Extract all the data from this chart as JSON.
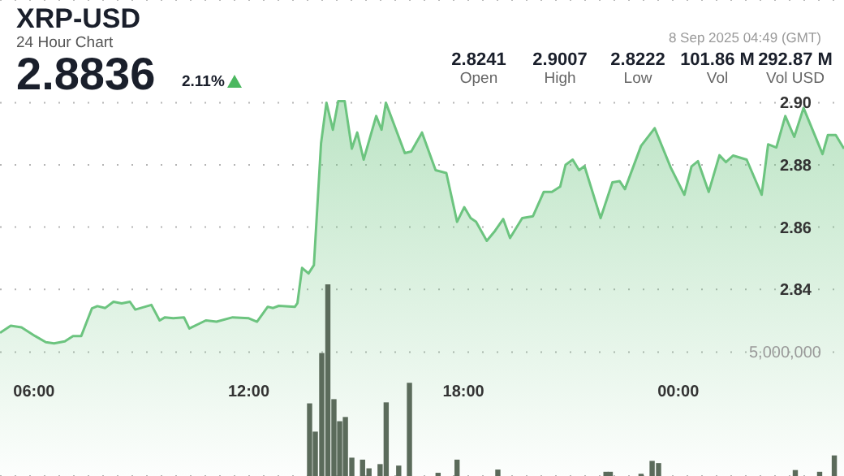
{
  "chart_data": {
    "type": "area",
    "title": "XRP-USD",
    "subtitle": "24 Hour Chart",
    "annotations": [
      "2.8836",
      "2.11%",
      "2.8241",
      "Open",
      "2.9007",
      "High",
      "2.8222",
      "Low",
      "101.86 M",
      "Vol",
      "292.87 M",
      "Vol USD",
      "8 Sep 2025 04:49 (GMT)"
    ],
    "series": [
      {
        "color": "#6cc47f",
        "x": [
          5.05,
          5.35,
          5.65,
          6.03,
          6.33,
          6.56,
          6.86,
          7.09,
          7.32,
          7.62,
          7.77,
          7.99,
          8.22,
          8.45,
          8.68,
          8.83,
          9.28,
          9.51,
          9.66,
          9.89,
          10.19,
          10.34,
          10.8,
          11.1,
          11.55,
          12.0,
          12.23,
          12.53,
          12.68,
          12.84,
          13.29,
          13.36,
          13.49,
          13.67,
          13.82,
          14.02,
          14.17,
          14.35,
          14.5,
          14.68,
          14.88,
          15.03,
          15.21,
          15.56,
          15.71,
          15.83,
          16.36,
          16.54,
          16.84,
          17.22,
          17.52,
          17.82,
          18.02,
          18.2,
          18.35,
          18.65,
          18.88,
          19.11,
          19.3,
          19.64,
          19.94,
          20.24,
          20.47,
          20.7,
          20.85,
          21.05,
          21.23,
          21.38,
          21.83,
          22.16,
          22.36,
          22.51,
          22.96,
          23.34,
          23.79,
          24.17,
          24.37,
          24.55,
          24.85,
          25.15,
          25.33,
          25.53,
          25.91,
          26.33,
          26.51,
          26.74,
          26.99,
          27.24,
          27.5,
          28.03,
          28.18,
          28.4,
          28.63
        ],
        "values": [
          2.826,
          2.8283,
          2.8278,
          2.825,
          2.823,
          2.8226,
          2.8233,
          2.825,
          2.825,
          2.8339,
          2.8346,
          2.834,
          2.836,
          2.8355,
          2.836,
          2.8335,
          2.835,
          2.83,
          2.831,
          2.8307,
          2.831,
          2.8274,
          2.83,
          2.8296,
          2.831,
          2.8307,
          2.8296,
          2.8344,
          2.834,
          2.8347,
          2.8344,
          2.8356,
          2.8469,
          2.8451,
          2.8478,
          2.887,
          2.9,
          2.8913,
          2.9005,
          2.9005,
          2.8852,
          2.8904,
          2.8817,
          2.8957,
          2.8913,
          2.9,
          2.8838,
          2.8843,
          2.8904,
          2.8783,
          2.8774,
          2.8617,
          2.8664,
          2.8629,
          2.8617,
          2.8556,
          2.8588,
          2.8626,
          2.8565,
          2.8629,
          2.8635,
          2.8713,
          2.8713,
          2.873,
          2.88,
          2.8817,
          2.8783,
          2.8796,
          2.8629,
          2.8744,
          2.8748,
          2.8722,
          2.8861,
          2.8918,
          2.8791,
          2.8704,
          2.8795,
          2.8812,
          2.8713,
          2.8831,
          2.8809,
          2.883,
          2.8817,
          2.8704,
          2.8866,
          2.8856,
          2.8957,
          2.889,
          2.8983,
          2.8835,
          2.8896,
          2.8896,
          2.8852
        ]
      },
      {
        "type": "bar",
        "axis": "y2",
        "color": "#5b6b5b",
        "x": [
          13.7,
          13.86,
          14.04,
          14.21,
          14.38,
          14.54,
          14.7,
          14.88,
          15.18,
          15.36,
          15.67,
          15.84,
          16.19,
          16.49,
          17.29,
          17.82,
          18.96,
          21.98,
          22.1,
          22.96,
          23.27,
          23.45,
          27.27,
          27.95,
          28.36
        ],
        "values": [
          2930000,
          1790000,
          4960000,
          7730000,
          3100000,
          2210000,
          2380000,
          740000,
          660000,
          310000,
          480000,
          2970000,
          420000,
          3760000,
          130000,
          660000,
          260000,
          170000,
          170000,
          90000,
          610000,
          520000,
          240000,
          170000,
          830000
        ]
      }
    ],
    "xlim": [
      5.05,
      28.63
    ],
    "xticks": [
      {
        "value": 6,
        "label": "06:00"
      },
      {
        "value": 12,
        "label": "12:00"
      },
      {
        "value": 18,
        "label": "18:00"
      },
      {
        "value": 24,
        "label": "00:00"
      }
    ],
    "ylim": [
      2.78,
      2.933
    ],
    "yticks": [
      2.84,
      2.86,
      2.88,
      {
        "value": 2.9,
        "label": "2.90"
      }
    ],
    "y2lim": [
      0,
      19200000
    ],
    "y2ticks": [
      {
        "value": 0,
        "label": null
      },
      {
        "value": 5000000,
        "label": "5,000,000"
      }
    ],
    "grid": "y"
  }
}
